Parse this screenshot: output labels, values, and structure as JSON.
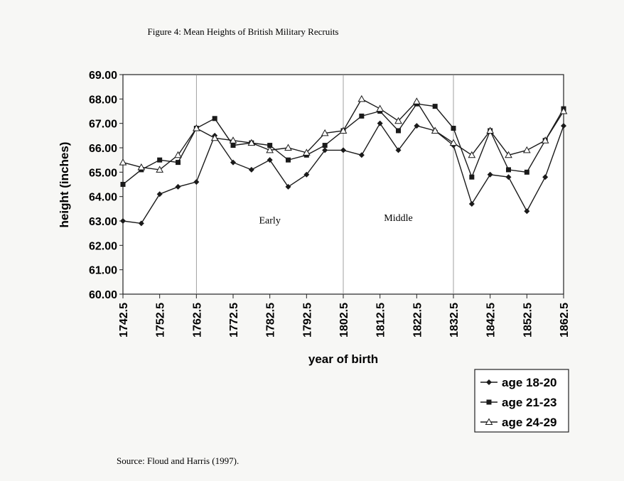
{
  "figure_title": "Figure 4:  Mean Heights of British Military Recruits",
  "source": "Source:  Floud and Harris (1997).",
  "chart_data": {
    "type": "line",
    "title": "Figure 4:  Mean Heights of British Military Recruits",
    "xlabel": "year of birth",
    "ylabel": "height (inches)",
    "xlim": [
      1742.5,
      1862.5
    ],
    "ylim": [
      60,
      69
    ],
    "x_ticks": [
      "1742.5",
      "1752.5",
      "1762.5",
      "1772.5",
      "1782.5",
      "1792.5",
      "1802.5",
      "1812.5",
      "1822.5",
      "1832.5",
      "1842.5",
      "1852.5",
      "1862.5"
    ],
    "y_ticks": [
      "60.00",
      "61.00",
      "62.00",
      "63.00",
      "64.00",
      "65.00",
      "66.00",
      "67.00",
      "68.00",
      "69.00"
    ],
    "grid": false,
    "period_dividers": [
      1762.5,
      1802.5,
      1832.5
    ],
    "annotations": [
      {
        "text": "Early",
        "x": 1782.5,
        "y": 62.9
      },
      {
        "text": "Middle",
        "x": 1817.5,
        "y": 63.0
      }
    ],
    "legend_position": "bottom-right",
    "x": [
      1742.5,
      1747.5,
      1752.5,
      1757.5,
      1762.5,
      1767.5,
      1772.5,
      1777.5,
      1782.5,
      1787.5,
      1792.5,
      1797.5,
      1802.5,
      1807.5,
      1812.5,
      1817.5,
      1822.5,
      1827.5,
      1832.5,
      1837.5,
      1842.5,
      1847.5,
      1852.5,
      1857.5,
      1862.5
    ],
    "series": [
      {
        "name": "age 18-20",
        "marker": "diamond",
        "values": [
          63.0,
          62.9,
          64.1,
          64.4,
          64.6,
          66.5,
          65.4,
          65.1,
          65.5,
          64.4,
          64.9,
          65.9,
          65.9,
          65.7,
          67.0,
          65.9,
          66.9,
          66.7,
          66.1,
          63.7,
          64.9,
          64.8,
          63.4,
          64.8,
          66.9
        ]
      },
      {
        "name": "age 21-23",
        "marker": "square",
        "values": [
          64.5,
          65.1,
          65.5,
          65.4,
          66.8,
          67.2,
          66.1,
          66.2,
          66.1,
          65.5,
          65.7,
          66.1,
          66.7,
          67.3,
          67.5,
          66.7,
          67.8,
          67.7,
          66.8,
          64.8,
          66.7,
          65.1,
          65.0,
          66.3,
          67.6
        ]
      },
      {
        "name": "age 24-29",
        "marker": "triangle",
        "values": [
          65.4,
          65.2,
          65.1,
          65.7,
          66.8,
          66.4,
          66.3,
          66.2,
          65.9,
          66.0,
          65.8,
          66.6,
          66.7,
          68.0,
          67.6,
          67.1,
          67.9,
          66.7,
          66.2,
          65.7,
          66.7,
          65.7,
          65.9,
          66.3,
          67.5
        ]
      }
    ]
  }
}
